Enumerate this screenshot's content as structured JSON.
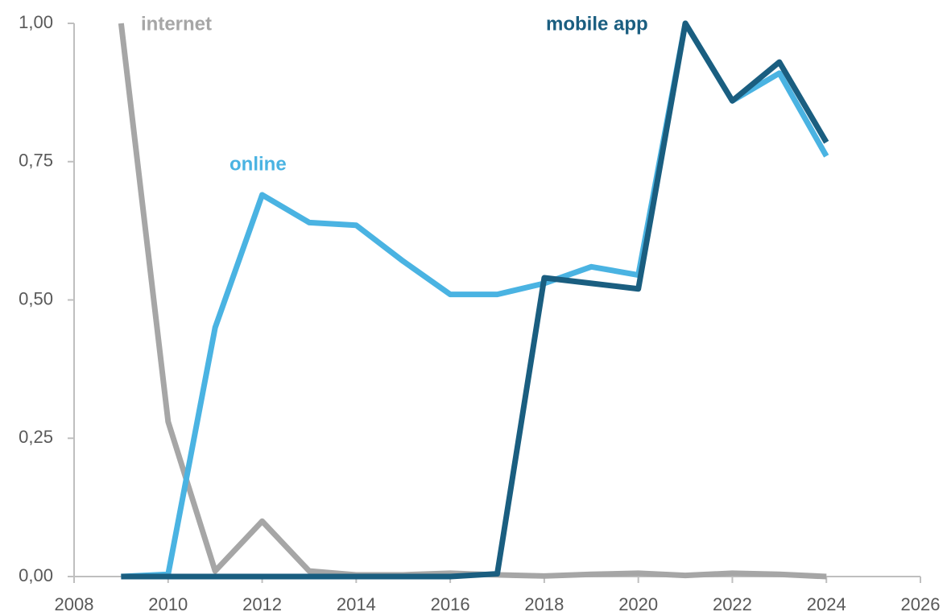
{
  "chart_data": {
    "type": "line",
    "x": [
      2009,
      2010,
      2011,
      2012,
      2013,
      2014,
      2015,
      2016,
      2017,
      2018,
      2019,
      2020,
      2021,
      2022,
      2023,
      2024
    ],
    "series": [
      {
        "name": "internet",
        "color": "#a6a6a6",
        "values": [
          1.0,
          0.28,
          0.01,
          0.1,
          0.01,
          0.003,
          0.003,
          0.006,
          0.003,
          0.001,
          0.004,
          0.006,
          0.002,
          0.006,
          0.004,
          0.0
        ]
      },
      {
        "name": "online",
        "color": "#4ab3e2",
        "values": [
          0.0,
          0.004,
          0.45,
          0.69,
          0.64,
          0.635,
          0.57,
          0.51,
          0.51,
          0.53,
          0.56,
          0.545,
          1.0,
          0.86,
          0.91,
          0.76
        ]
      },
      {
        "name": "mobile app",
        "color": "#1a5e80",
        "values": [
          0.0,
          0.0,
          0.0,
          0.0,
          0.0,
          0.0,
          0.0,
          0.0,
          0.005,
          0.54,
          0.53,
          0.52,
          1.0,
          0.86,
          0.93,
          0.785
        ]
      }
    ],
    "xlim": [
      2008,
      2026
    ],
    "xticks": [
      2008,
      2010,
      2012,
      2014,
      2016,
      2018,
      2020,
      2022,
      2024,
      2026
    ],
    "ylim": [
      0,
      1
    ],
    "yticks": [
      {
        "value": 0,
        "label": "0,00"
      },
      {
        "value": 0.25,
        "label": "0,25"
      },
      {
        "value": 0.5,
        "label": "0,50"
      },
      {
        "value": 0.75,
        "label": "0,75"
      },
      {
        "value": 1,
        "label": "1,00"
      }
    ],
    "grid": false
  }
}
